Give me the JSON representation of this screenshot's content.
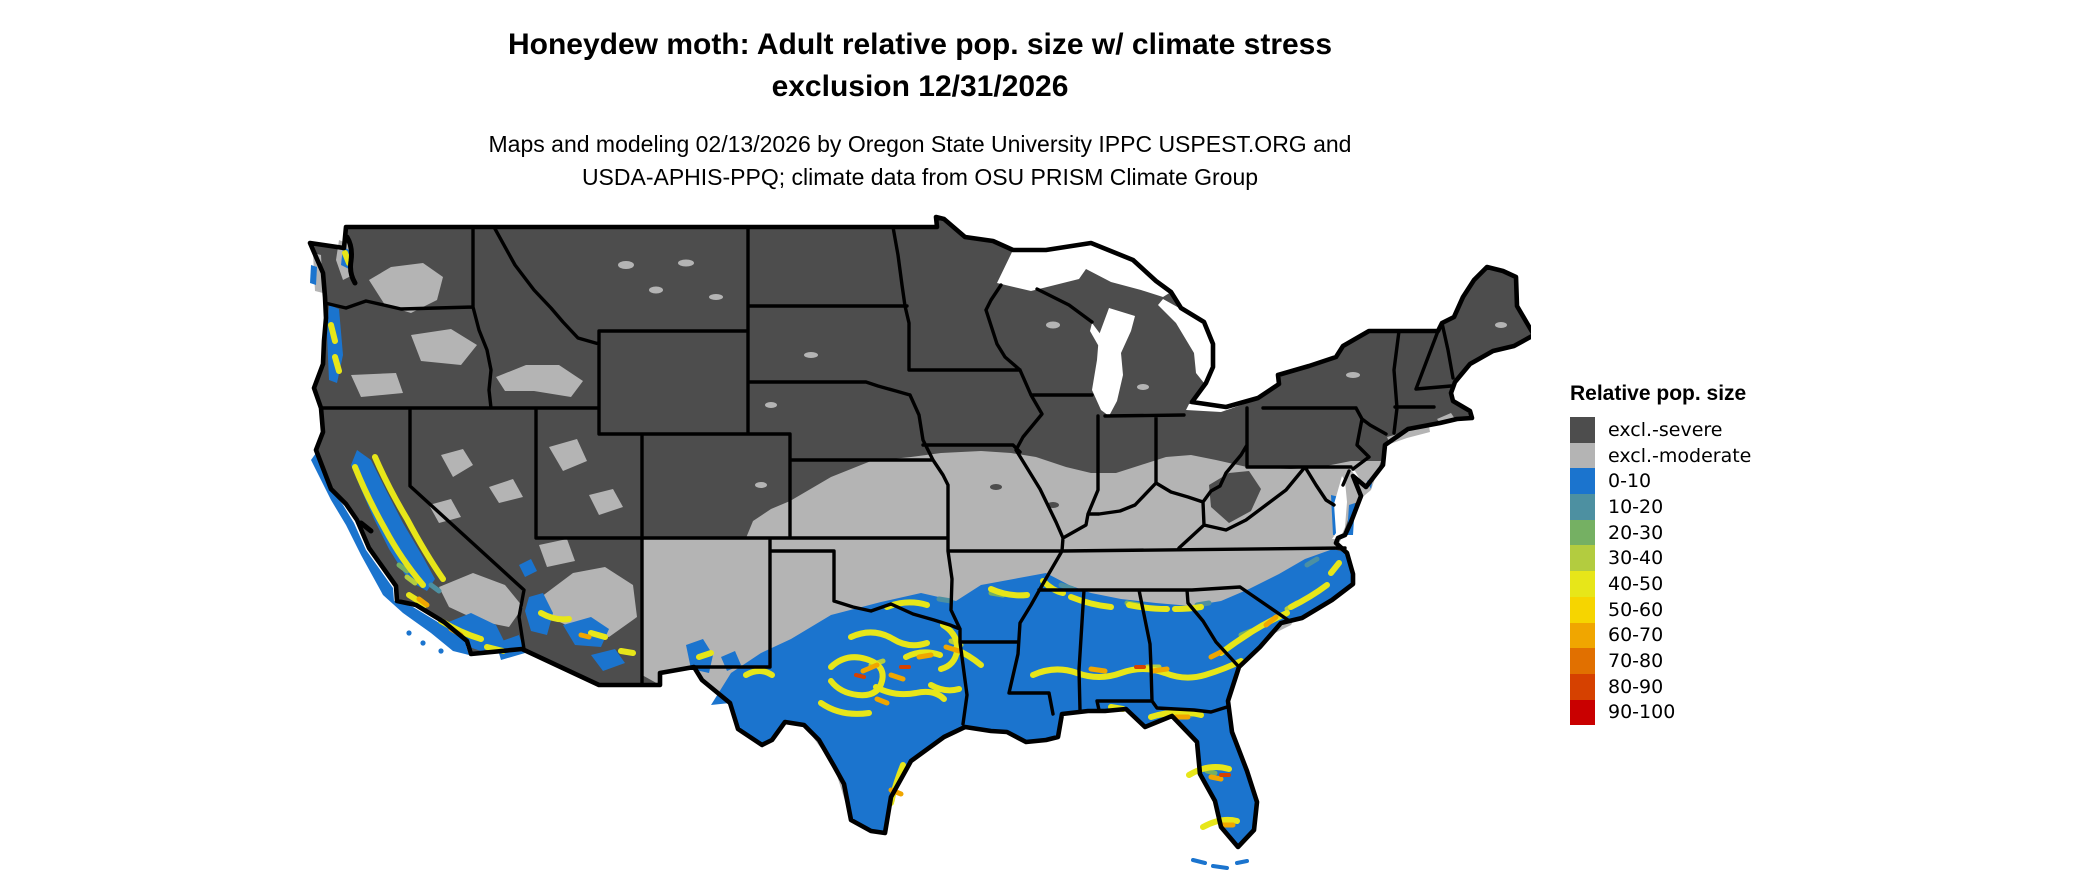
{
  "title": {
    "line1": "Honeydew moth: Adult relative pop. size w/ climate stress",
    "line2": "exclusion 12/31/2026"
  },
  "subtitle": {
    "line1": "Maps and modeling 02/13/2026 by Oregon State University IPPC USPEST.ORG and",
    "line2": "USDA-APHIS-PPQ; climate data from OSU PRISM Climate Group"
  },
  "map": {
    "alt": "Contiguous United States raster map of honeydew moth adult relative population size with climate stress exclusion; northern and mountain states excluded-severe (dark gray), a central transition band excluded-moderate (light gray), the South and coastal California blue (0-10) with yellow to orange stress-boundary bands",
    "border_color": "#000000",
    "water_color": "#FFFFFF"
  },
  "legend": {
    "title": "Relative pop. size",
    "items": [
      {
        "key": "sev",
        "label": "excl.-severe",
        "color": "#4D4D4D"
      },
      {
        "key": "mod",
        "label": "excl.-moderate",
        "color": "#B4B4B4"
      },
      {
        "key": "b0",
        "label": "0-10",
        "color": "#1B74CE"
      },
      {
        "key": "b10",
        "label": "10-20",
        "color": "#4D90A1"
      },
      {
        "key": "b20",
        "label": "20-30",
        "color": "#75B063"
      },
      {
        "key": "b30",
        "label": "30-40",
        "color": "#B3CC3F"
      },
      {
        "key": "b40",
        "label": "40-50",
        "color": "#E7E619"
      },
      {
        "key": "b50",
        "label": "50-60",
        "color": "#F6D500"
      },
      {
        "key": "b60",
        "label": "60-70",
        "color": "#F0A600"
      },
      {
        "key": "b70",
        "label": "70-80",
        "color": "#E17000"
      },
      {
        "key": "b80",
        "label": "80-90",
        "color": "#D64100"
      },
      {
        "key": "b90",
        "label": "90-100",
        "color": "#C90000"
      }
    ]
  }
}
